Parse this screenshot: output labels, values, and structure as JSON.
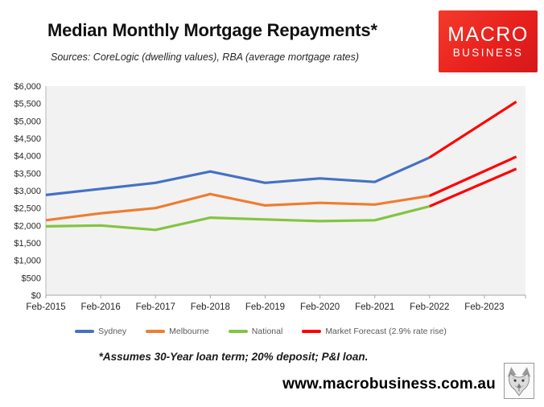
{
  "header": {
    "title": "Median Monthly Mortgage Repayments*",
    "subtitle": "Sources: CoreLogic (dwelling values), RBA (average mortgage rates)",
    "logo": {
      "line1": "MACRO",
      "line2": "BUSINESS",
      "bg_color": "#e8211d",
      "text_color": "#ffffff"
    }
  },
  "chart_data": {
    "type": "line",
    "title": "Median Monthly Mortgage Repayments*",
    "x_axis": {
      "unit": "months since Feb-2015",
      "tick_labels": [
        "Feb-2015",
        "Feb-2016",
        "Feb-2017",
        "Feb-2018",
        "Feb-2019",
        "Feb-2020",
        "Feb-2021",
        "Feb-2022",
        "Feb-2023"
      ],
      "tick_months": [
        0,
        12,
        24,
        36,
        48,
        60,
        72,
        84,
        96
      ],
      "axis_end_month": 105
    },
    "y_axis": {
      "range": [
        0,
        6000
      ],
      "tick_values": [
        0,
        500,
        1000,
        1500,
        2000,
        2500,
        3000,
        3500,
        4000,
        4500,
        5000,
        5500,
        6000
      ],
      "tick_labels": [
        "$0",
        "$500",
        "$1,000",
        "$1,500",
        "$2,000",
        "$2,500",
        "$3,000",
        "$3,500",
        "$4,000",
        "$4,500",
        "$5,000",
        "$5,500",
        "$6,000"
      ]
    },
    "plot_bg": "#f2f2f2",
    "grid": false,
    "series": [
      {
        "name": "Sydney",
        "color": "#4472c4",
        "x": [
          0,
          12,
          24,
          36,
          48,
          60,
          72,
          84
        ],
        "values": [
          2875,
          3050,
          3225,
          3550,
          3225,
          3350,
          3250,
          3950
        ]
      },
      {
        "name": "Melbourne",
        "color": "#ed7d31",
        "x": [
          0,
          12,
          24,
          36,
          48,
          60,
          72,
          84
        ],
        "values": [
          2150,
          2350,
          2500,
          2900,
          2575,
          2650,
          2600,
          2850
        ]
      },
      {
        "name": "National",
        "color": "#84c441",
        "x": [
          0,
          12,
          24,
          36,
          48,
          60,
          72,
          84
        ],
        "values": [
          1975,
          2000,
          1875,
          2225,
          2175,
          2125,
          2150,
          2550
        ]
      },
      {
        "name": "Market Forecast (2.9% rate rise)",
        "color": "#ff0000",
        "segments": [
          {
            "city": "Sydney",
            "x": [
              84,
              103
            ],
            "values": [
              3950,
              5550
            ]
          },
          {
            "city": "Melbourne",
            "x": [
              84,
              103
            ],
            "values": [
              2850,
              3975
            ]
          },
          {
            "city": "National",
            "x": [
              84,
              103
            ],
            "values": [
              2550,
              3625
            ]
          }
        ]
      }
    ],
    "legend": {
      "position": "bottom",
      "items": [
        {
          "label": "Sydney",
          "color": "#4472c4"
        },
        {
          "label": "Melbourne",
          "color": "#ed7d31"
        },
        {
          "label": "National",
          "color": "#84c441"
        },
        {
          "label": "Market Forecast (2.9% rate rise)",
          "color": "#ff0000"
        }
      ]
    }
  },
  "footnote": "*Assumes 30-Year loan term; 20% deposit; P&I loan.",
  "footer": {
    "website": "www.macrobusiness.com.au",
    "logo_icon": "wolf-icon"
  }
}
